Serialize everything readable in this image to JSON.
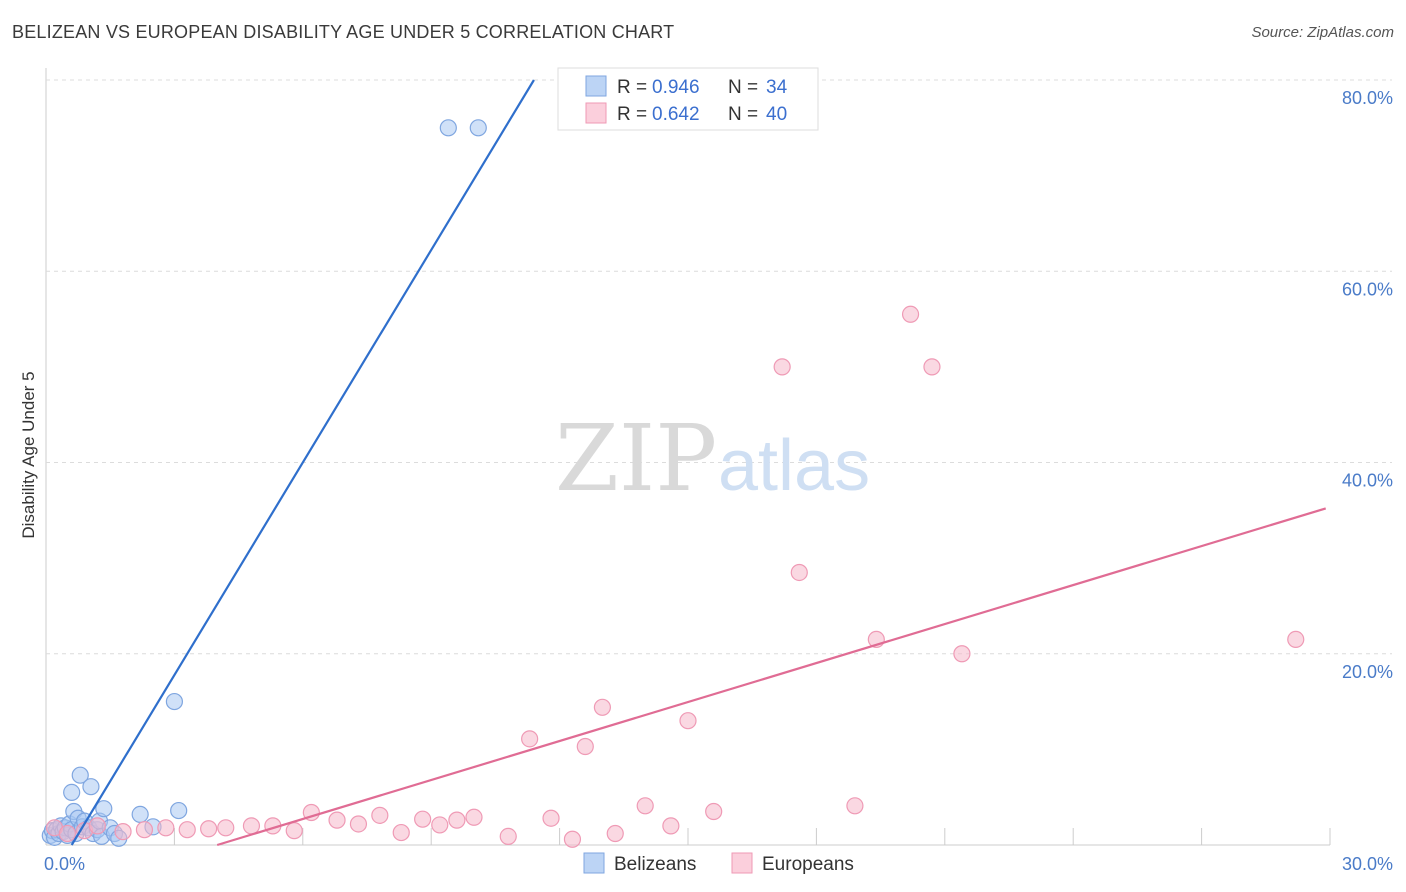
{
  "chart_data": {
    "type": "scatter",
    "title": "BELIZEAN VS EUROPEAN DISABILITY AGE UNDER 5 CORRELATION CHART",
    "source": "Source: ZipAtlas.com",
    "watermark": {
      "zip": "ZIP",
      "atlas": "atlas"
    },
    "ylabel": "Disability Age Under 5",
    "xlim": [
      0,
      30
    ],
    "ylim": [
      0,
      80
    ],
    "x_ticks": [
      {
        "v": 0,
        "label": "0.0%"
      },
      {
        "v": 30,
        "label": "30.0%"
      }
    ],
    "y_ticks": [
      {
        "v": 20,
        "label": "20.0%"
      },
      {
        "v": 40,
        "label": "40.0%"
      },
      {
        "v": 60,
        "label": "60.0%"
      },
      {
        "v": 80,
        "label": "80.0%"
      }
    ],
    "grid": true,
    "legend_position": "top-center",
    "series": [
      {
        "name": "Belizeans",
        "color": "#a9c8f2",
        "line_color": "#2f6fcc",
        "r_label": "R = ",
        "r_value": "0.946",
        "n_label": "N = ",
        "n_value": "34",
        "trend": {
          "x0": 0.6,
          "y0": 0.0,
          "x1": 11.4,
          "y1": 80.0
        },
        "points": [
          [
            0.1,
            1.0
          ],
          [
            0.15,
            1.5
          ],
          [
            0.2,
            0.8
          ],
          [
            0.25,
            1.6
          ],
          [
            0.3,
            1.2
          ],
          [
            0.35,
            2.0
          ],
          [
            0.4,
            1.4
          ],
          [
            0.45,
            1.8
          ],
          [
            0.5,
            1.0
          ],
          [
            0.55,
            2.2
          ],
          [
            0.6,
            1.6
          ],
          [
            0.65,
            3.5
          ],
          [
            0.7,
            1.2
          ],
          [
            0.75,
            2.8
          ],
          [
            0.8,
            7.3
          ],
          [
            0.85,
            1.9
          ],
          [
            0.9,
            2.5
          ],
          [
            1.0,
            1.8
          ],
          [
            1.05,
            6.1
          ],
          [
            1.1,
            1.2
          ],
          [
            1.2,
            1.6
          ],
          [
            1.25,
            2.5
          ],
          [
            1.3,
            0.9
          ],
          [
            1.35,
            3.8
          ],
          [
            1.5,
            1.8
          ],
          [
            1.6,
            1.2
          ],
          [
            1.7,
            0.7
          ],
          [
            2.2,
            3.2
          ],
          [
            2.5,
            1.9
          ],
          [
            3.0,
            15.0
          ],
          [
            3.1,
            3.6
          ],
          [
            9.4,
            75.0
          ],
          [
            10.1,
            75.0
          ],
          [
            0.6,
            5.5
          ]
        ]
      },
      {
        "name": "Europeans",
        "color": "#f6b8ca",
        "line_color": "#e06c94",
        "r_label": "R = ",
        "r_value": "0.642",
        "n_label": "N = ",
        "n_value": "40",
        "trend": {
          "x0": 4.0,
          "y0": 0.0,
          "x1": 29.9,
          "y1": 35.2
        },
        "points": [
          [
            0.2,
            1.8
          ],
          [
            0.5,
            1.2
          ],
          [
            0.9,
            1.5
          ],
          [
            1.2,
            2.0
          ],
          [
            1.8,
            1.4
          ],
          [
            2.3,
            1.6
          ],
          [
            2.8,
            1.8
          ],
          [
            3.3,
            1.6
          ],
          [
            3.8,
            1.7
          ],
          [
            4.2,
            1.8
          ],
          [
            4.8,
            2.0
          ],
          [
            5.3,
            2.0
          ],
          [
            5.8,
            1.5
          ],
          [
            6.2,
            3.4
          ],
          [
            6.8,
            2.6
          ],
          [
            7.3,
            2.2
          ],
          [
            7.8,
            3.1
          ],
          [
            8.3,
            1.3
          ],
          [
            8.8,
            2.7
          ],
          [
            9.2,
            2.1
          ],
          [
            9.6,
            2.6
          ],
          [
            10.0,
            2.9
          ],
          [
            10.8,
            0.9
          ],
          [
            11.3,
            11.1
          ],
          [
            11.8,
            2.8
          ],
          [
            12.3,
            0.6
          ],
          [
            12.6,
            10.3
          ],
          [
            13.0,
            14.4
          ],
          [
            13.3,
            1.2
          ],
          [
            14.0,
            4.1
          ],
          [
            14.6,
            2.0
          ],
          [
            15.0,
            13.0
          ],
          [
            15.6,
            3.5
          ],
          [
            17.2,
            50.0
          ],
          [
            17.6,
            28.5
          ],
          [
            18.9,
            4.1
          ],
          [
            19.4,
            21.5
          ],
          [
            20.2,
            55.5
          ],
          [
            20.7,
            50.0
          ],
          [
            21.4,
            20.0
          ]
        ]
      }
    ],
    "outlier_note": [
      29.2,
      21.5
    ]
  }
}
